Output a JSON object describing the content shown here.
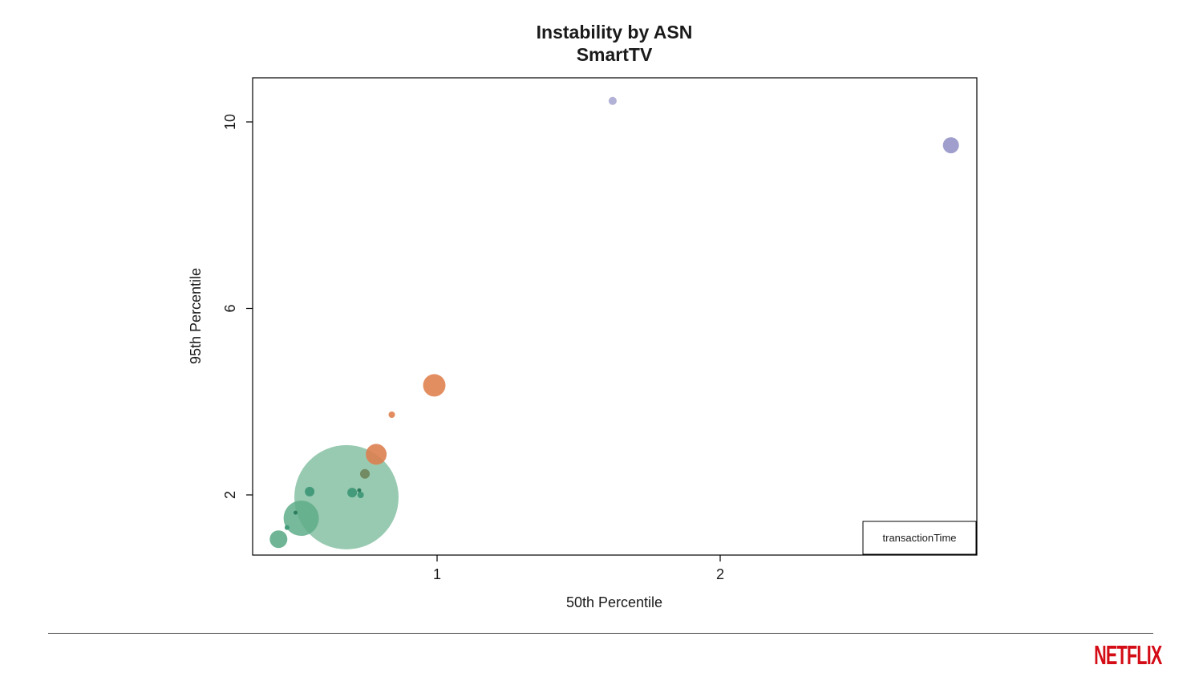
{
  "branding": {
    "logo": "NETFLIX",
    "color": "#d30c16"
  },
  "chart_data": {
    "type": "scatter",
    "title": "Instability by ASN",
    "subtitle": "SmartTV",
    "xlabel": "50th Percentile",
    "ylabel": "95th Percentile",
    "legend_label": "transactionTime",
    "legend_position": "bottom-right",
    "grid": false,
    "xlim": [
      0.35,
      2.9
    ],
    "ylim": [
      0.7,
      10.9
    ],
    "x_ticks": [
      1,
      2
    ],
    "y_ticks": [
      2,
      6,
      10
    ],
    "points": [
      {
        "x": 0.68,
        "y": 1.95,
        "r": 65,
        "color": "#70b693",
        "opacity": 0.72
      },
      {
        "x": 0.52,
        "y": 1.5,
        "r": 22,
        "color": "#5fad89",
        "opacity": 0.85
      },
      {
        "x": 0.44,
        "y": 1.05,
        "r": 11,
        "color": "#5fad89",
        "opacity": 0.9
      },
      {
        "x": 0.55,
        "y": 2.07,
        "r": 6,
        "color": "#3f9878",
        "opacity": 0.95
      },
      {
        "x": 0.7,
        "y": 2.05,
        "r": 6,
        "color": "#3f9878",
        "opacity": 0.95
      },
      {
        "x": 0.73,
        "y": 2.0,
        "r": 4,
        "color": "#3f9878",
        "opacity": 0.95
      },
      {
        "x": 0.725,
        "y": 2.1,
        "r": 2.5,
        "color": "#2e7c5e",
        "opacity": 1
      },
      {
        "x": 0.745,
        "y": 2.45,
        "r": 6,
        "color": "#70875f",
        "opacity": 0.95
      },
      {
        "x": 0.5,
        "y": 1.62,
        "r": 2.5,
        "color": "#2e7c5e",
        "opacity": 1
      },
      {
        "x": 0.47,
        "y": 1.3,
        "r": 3,
        "color": "#3f9878",
        "opacity": 0.95
      },
      {
        "x": 0.785,
        "y": 2.87,
        "r": 13,
        "color": "#dd8050",
        "opacity": 0.9
      },
      {
        "x": 0.84,
        "y": 3.72,
        "r": 4,
        "color": "#e0804d",
        "opacity": 0.9
      },
      {
        "x": 0.99,
        "y": 4.35,
        "r": 14,
        "color": "#e0824f",
        "opacity": 0.9
      },
      {
        "x": 1.62,
        "y": 10.45,
        "r": 5,
        "color": "#aaa8d2",
        "opacity": 0.9
      },
      {
        "x": 2.815,
        "y": 9.5,
        "r": 10,
        "color": "#9a99c9",
        "opacity": 0.95
      }
    ]
  }
}
